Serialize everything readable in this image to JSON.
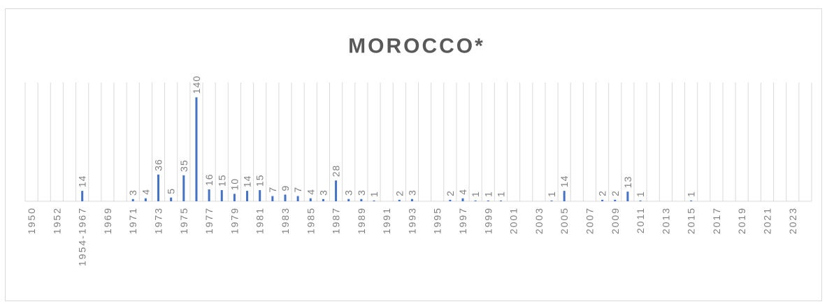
{
  "chart_data": {
    "type": "bar",
    "title": "MOROCCO*",
    "categories": [
      "1950",
      null,
      "1952",
      null,
      "1954-1967",
      null,
      "1969",
      null,
      "1971",
      null,
      "1973",
      null,
      "1975",
      null,
      "1977",
      null,
      "1979",
      null,
      "1981",
      null,
      "1983",
      null,
      "1985",
      null,
      "1987",
      null,
      "1989",
      null,
      "1991",
      null,
      "1993",
      null,
      "1995",
      null,
      "1997",
      null,
      "1999",
      null,
      "2001",
      null,
      "2003",
      null,
      "2005",
      null,
      "2007",
      null,
      "2009",
      null,
      "2011",
      null,
      "2013",
      null,
      "2015",
      null,
      "2017",
      null,
      "2019",
      null,
      "2021",
      null,
      "2023",
      null
    ],
    "values": [
      null,
      null,
      null,
      null,
      14,
      null,
      null,
      null,
      3,
      4,
      36,
      5,
      35,
      140,
      16,
      15,
      10,
      14,
      15,
      7,
      9,
      7,
      4,
      3,
      28,
      3,
      3,
      1,
      null,
      2,
      3,
      null,
      null,
      2,
      4,
      1,
      1,
      1,
      null,
      null,
      null,
      1,
      14,
      null,
      null,
      2,
      2,
      13,
      1,
      null,
      null,
      null,
      1,
      null,
      null,
      null,
      null,
      null,
      null,
      null,
      null,
      null
    ],
    "color": "#4472c4",
    "ylim": [
      0,
      160
    ],
    "grid": true
  }
}
